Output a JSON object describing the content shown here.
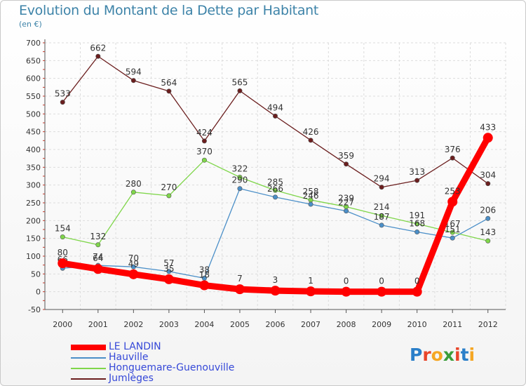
{
  "title": "Evolution du Montant de la Dette par Habitant",
  "subtitle": "(en €)",
  "brand": {
    "letters": [
      "P",
      "r",
      "o",
      "x",
      "i",
      "t",
      "i"
    ],
    "colors": [
      "#2a7fc9",
      "#e8452a",
      "#f5a623",
      "#3a9d3a",
      "#e8452a",
      "#2a7fc9",
      "#f5a623"
    ]
  },
  "chart_data": {
    "type": "line",
    "x": [
      "2000",
      "2001",
      "2002",
      "2003",
      "2004",
      "2005",
      "2006",
      "2007",
      "2008",
      "2009",
      "2010",
      "2011",
      "2012"
    ],
    "ylim": [
      -50,
      700
    ],
    "yticks": [
      -50,
      0,
      50,
      100,
      150,
      200,
      250,
      300,
      350,
      400,
      450,
      500,
      550,
      600,
      650,
      700
    ],
    "grid": true,
    "legend_position": "bottom-left",
    "series": [
      {
        "name": "Jumlèges",
        "color": "#6b1e1e",
        "values": [
          533,
          662,
          594,
          564,
          424,
          565,
          494,
          426,
          359,
          294,
          313,
          376,
          304
        ]
      },
      {
        "name": "Honguemare-Guenouville",
        "color": "#7fd64a",
        "values": [
          154,
          132,
          280,
          270,
          370,
          322,
          285,
          258,
          239,
          214,
          191,
          167,
          143
        ]
      },
      {
        "name": "Hauville",
        "color": "#4b8fc8",
        "values": [
          66,
          74,
          70,
          57,
          38,
          290,
          266,
          246,
          227,
          187,
          168,
          151,
          206
        ]
      },
      {
        "name": "LE LANDIN",
        "color": "#ff0000",
        "values": [
          80,
          64,
          49,
          35,
          18,
          7,
          3,
          1,
          0,
          0,
          0,
          253,
          433
        ]
      }
    ],
    "labels": [
      [
        "533",
        "662",
        "594",
        "564",
        "424",
        "565",
        "494",
        "426",
        "359",
        "294",
        "313",
        "376",
        "304"
      ],
      [
        "154",
        "132",
        "280",
        "270",
        "370",
        "322",
        "285",
        "258",
        "239",
        "214",
        "191",
        "167",
        "143"
      ],
      [
        "66",
        "74",
        "70",
        "57",
        "38",
        "290",
        "266",
        "246",
        "227",
        "187",
        "168",
        "151",
        "206"
      ],
      [
        "80",
        "64",
        "49",
        "35",
        "18",
        "7",
        "3",
        "1",
        "0",
        "0",
        "0",
        "253",
        "433"
      ]
    ],
    "legend": [
      "LE LANDIN",
      "Hauville",
      "Honguemare-Guenouville",
      "Jumlèges"
    ]
  }
}
